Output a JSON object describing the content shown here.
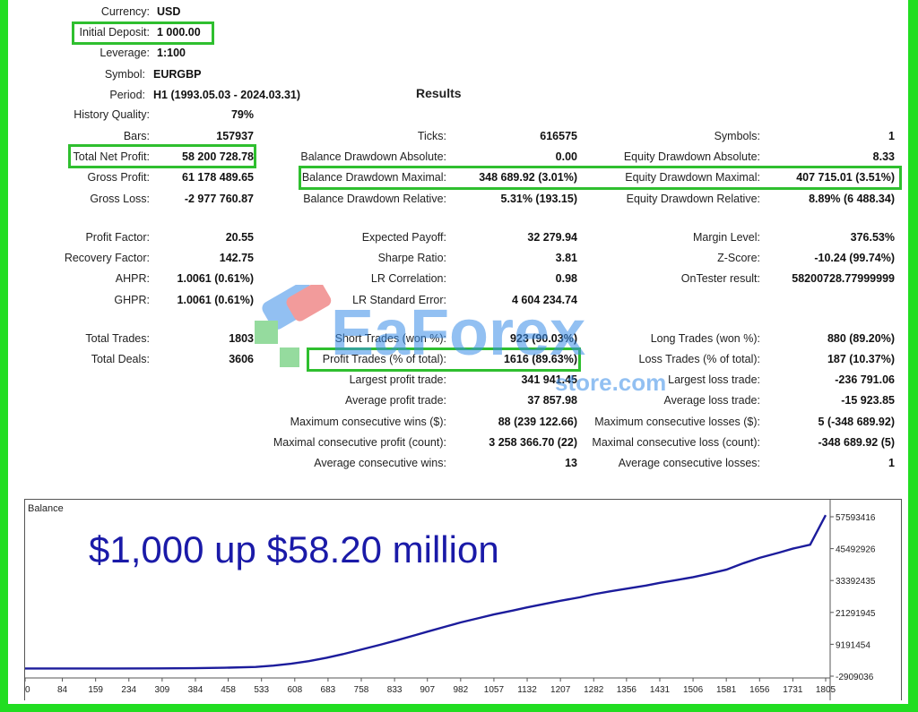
{
  "settings": {
    "currency_label": "Currency:",
    "currency": "USD",
    "deposit_label": "Initial Deposit:",
    "deposit": "1 000.00",
    "leverage_label": "Leverage:",
    "leverage": "1:100",
    "symbol_label": "Symbol:",
    "symbol": "EURGBP",
    "period_label": "Period:",
    "period": "H1 (1993.05.03 - 2024.03.31)"
  },
  "results_title": "Results",
  "col1": [
    {
      "label": "History Quality:",
      "value": "79%"
    },
    {
      "label": "Bars:",
      "value": "157937"
    },
    {
      "label": "Total Net Profit:",
      "value": "58 200 728.78"
    },
    {
      "label": "Gross Profit:",
      "value": "61 178 489.65"
    },
    {
      "label": "Gross Loss:",
      "value": "-2 977 760.87"
    },
    {
      "label": "Profit Factor:",
      "value": "20.55"
    },
    {
      "label": "Recovery Factor:",
      "value": "142.75"
    },
    {
      "label": "AHPR:",
      "value": "1.0061 (0.61%)"
    },
    {
      "label": "GHPR:",
      "value": "1.0061 (0.61%)"
    },
    {
      "label": "Total Trades:",
      "value": "1803"
    },
    {
      "label": "Total Deals:",
      "value": "3606"
    }
  ],
  "col2": [
    {
      "label": "Ticks:",
      "value": "616575"
    },
    {
      "label": "Balance Drawdown Absolute:",
      "value": "0.00"
    },
    {
      "label": "Balance Drawdown Maximal:",
      "value": "348 689.92 (3.01%)"
    },
    {
      "label": "Balance Drawdown Relative:",
      "value": "5.31% (193.15)"
    },
    {
      "label": "Expected Payoff:",
      "value": "32 279.94"
    },
    {
      "label": "Sharpe Ratio:",
      "value": "3.81"
    },
    {
      "label": "LR Correlation:",
      "value": "0.98"
    },
    {
      "label": "LR Standard Error:",
      "value": "4 604 234.74"
    },
    {
      "label": "Short Trades (won %):",
      "value": "923 (90.03%)"
    },
    {
      "label": "Profit Trades (% of total):",
      "value": "1616 (89.63%)"
    },
    {
      "label": "Largest profit trade:",
      "value": "341 941.45"
    },
    {
      "label": "Average profit trade:",
      "value": "37 857.98"
    },
    {
      "label": "Maximum consecutive wins ($):",
      "value": "88 (239 122.66)"
    },
    {
      "label": "Maximal consecutive profit (count):",
      "value": "3 258 366.70 (22)"
    },
    {
      "label": "Average consecutive wins:",
      "value": "13"
    }
  ],
  "col3": [
    {
      "label": "Symbols:",
      "value": "1"
    },
    {
      "label": "Equity Drawdown Absolute:",
      "value": "8.33"
    },
    {
      "label": "Equity Drawdown Maximal:",
      "value": "407 715.01 (3.51%)"
    },
    {
      "label": "Equity Drawdown Relative:",
      "value": "8.89% (6 488.34)"
    },
    {
      "label": "Margin Level:",
      "value": "376.53%"
    },
    {
      "label": "Z-Score:",
      "value": "-10.24 (99.74%)"
    },
    {
      "label": "OnTester result:",
      "value": "58200728.77999999"
    },
    {
      "label": "Long Trades (won %):",
      "value": "880 (89.20%)"
    },
    {
      "label": "Loss Trades (% of total):",
      "value": "187 (10.37%)"
    },
    {
      "label": "Largest loss trade:",
      "value": "-236 791.06"
    },
    {
      "label": "Average loss trade:",
      "value": "-15 923.85"
    },
    {
      "label": "Maximum consecutive losses ($):",
      "value": "5 (-348 689.92)"
    },
    {
      "label": "Maximal consecutive loss (count):",
      "value": "-348 689.92 (5)"
    },
    {
      "label": "Average consecutive losses:",
      "value": "1"
    }
  ],
  "watermark": {
    "brand": "EaForex",
    "sub": "store.com"
  },
  "caption": "$1,000 up $58.20 million",
  "highlight_color": "#2fbf2f",
  "chart_data": {
    "type": "line",
    "title": "Balance",
    "x_ticks": [
      "0",
      "84",
      "159",
      "234",
      "309",
      "384",
      "458",
      "533",
      "608",
      "683",
      "758",
      "833",
      "907",
      "982",
      "1057",
      "1132",
      "1207",
      "1282",
      "1356",
      "1431",
      "1506",
      "1581",
      "1656",
      "1731",
      "1805"
    ],
    "y_ticks": [
      "57593416",
      "45492926",
      "33392435",
      "21291945",
      "9191454",
      "-2909036"
    ],
    "ylim": [
      -2909036,
      57593416
    ],
    "xlim": [
      0,
      1805
    ],
    "line_color": "#1c1c9c",
    "series": [
      {
        "x": [
          0,
          100,
          200,
          300,
          380,
          450,
          520,
          560,
          600,
          640,
          680,
          720,
          760,
          800,
          840,
          880,
          907,
          950,
          982,
          1020,
          1057,
          1100,
          1132,
          1170,
          1207,
          1250,
          1282,
          1320,
          1356,
          1400,
          1431,
          1470,
          1506,
          1540,
          1581,
          1620,
          1656,
          1700,
          1731,
          1770,
          1805
        ],
        "y": [
          0,
          5000,
          15000,
          40000,
          120000,
          300000,
          600000,
          1100000,
          1800000,
          2800000,
          4100000,
          5600000,
          7300000,
          9000000,
          10800000,
          12700000,
          14000000,
          16000000,
          17500000,
          19000000,
          20500000,
          22000000,
          23200000,
          24500000,
          25700000,
          27000000,
          28200000,
          29300000,
          30300000,
          31500000,
          32500000,
          33600000,
          34700000,
          35900000,
          37500000,
          40000000,
          42000000,
          44000000,
          45500000,
          47000000,
          58200728
        ]
      }
    ]
  }
}
